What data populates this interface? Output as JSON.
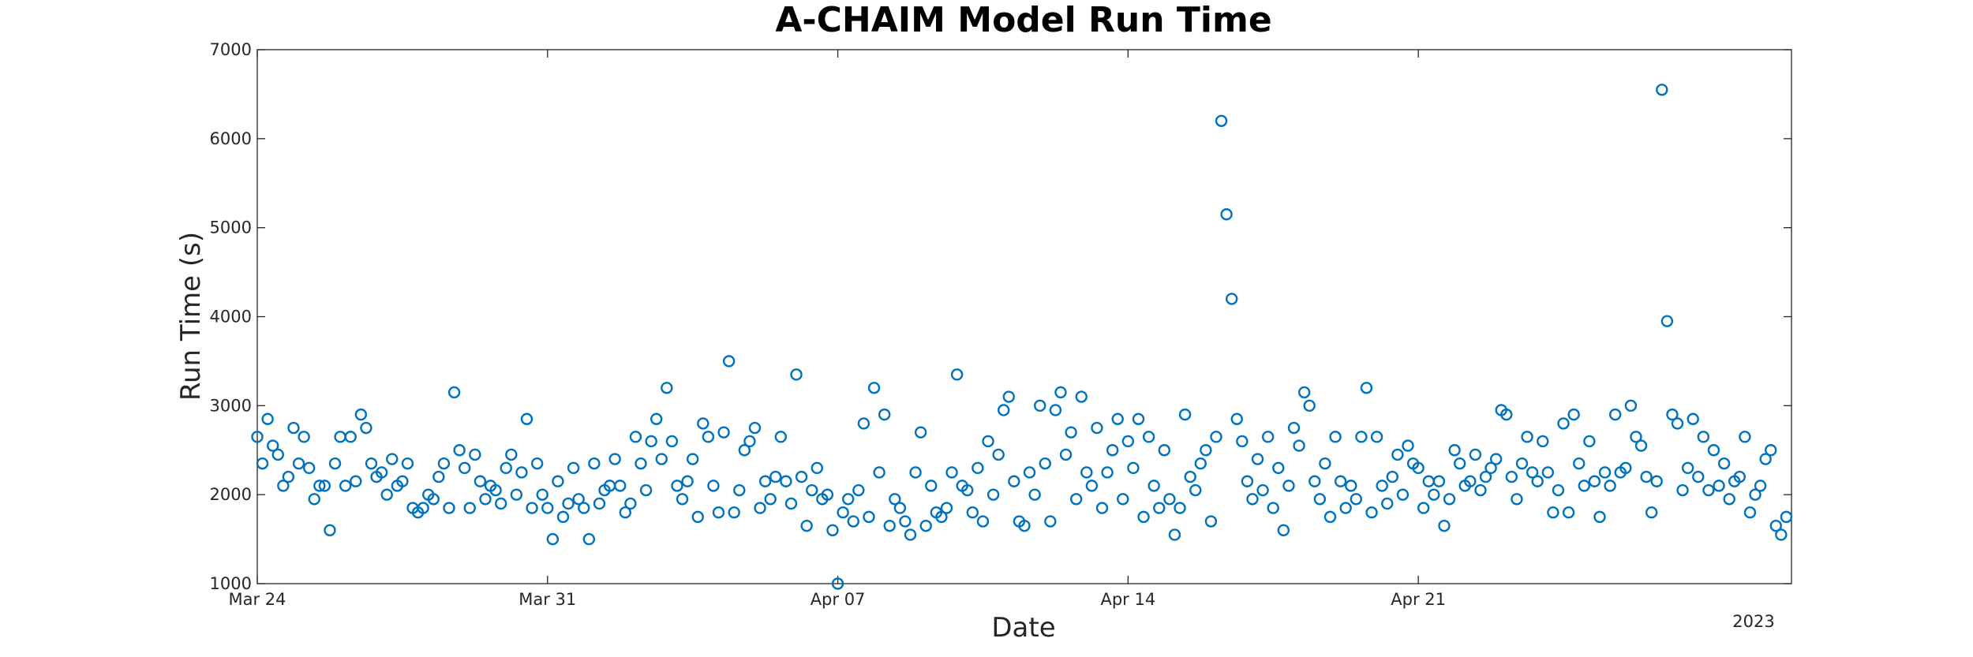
{
  "chart_data": {
    "type": "scatter",
    "title": "A-CHAIM Model Run Time",
    "xlabel": "Date",
    "ylabel": "Run Time (s)",
    "x_axis_type": "date",
    "xlim": [
      "2023-03-24",
      "2023-04-30"
    ],
    "ylim": [
      1000,
      7000
    ],
    "year_label": "2023",
    "x_ticks": [
      {
        "date": "2023-03-24",
        "label": "Mar 24"
      },
      {
        "date": "2023-03-31",
        "label": "Mar 31"
      },
      {
        "date": "2023-04-07",
        "label": "Apr 07"
      },
      {
        "date": "2023-04-14",
        "label": "Apr 14"
      },
      {
        "date": "2023-04-21",
        "label": "Apr 21"
      }
    ],
    "y_ticks": [
      1000,
      2000,
      3000,
      4000,
      5000,
      6000,
      7000
    ],
    "grid": false,
    "marker": "open-circle",
    "color": "#0072BD",
    "points": [
      [
        "2023-03-24 00:00",
        2650
      ],
      [
        "2023-03-24 03:00",
        2350
      ],
      [
        "2023-03-24 06:00",
        2850
      ],
      [
        "2023-03-24 09:00",
        2550
      ],
      [
        "2023-03-24 12:00",
        2450
      ],
      [
        "2023-03-24 15:00",
        2100
      ],
      [
        "2023-03-24 18:00",
        2200
      ],
      [
        "2023-03-24 21:00",
        2750
      ],
      [
        "2023-03-25 00:00",
        2350
      ],
      [
        "2023-03-25 03:00",
        2650
      ],
      [
        "2023-03-25 06:00",
        2300
      ],
      [
        "2023-03-25 09:00",
        1950
      ],
      [
        "2023-03-25 12:00",
        2100
      ],
      [
        "2023-03-25 15:00",
        2100
      ],
      [
        "2023-03-25 18:00",
        1600
      ],
      [
        "2023-03-25 21:00",
        2350
      ],
      [
        "2023-03-26 00:00",
        2650
      ],
      [
        "2023-03-26 03:00",
        2100
      ],
      [
        "2023-03-26 06:00",
        2650
      ],
      [
        "2023-03-26 09:00",
        2150
      ],
      [
        "2023-03-26 12:00",
        2900
      ],
      [
        "2023-03-26 15:00",
        2750
      ],
      [
        "2023-03-26 18:00",
        2350
      ],
      [
        "2023-03-26 21:00",
        2200
      ],
      [
        "2023-03-27 00:00",
        2250
      ],
      [
        "2023-03-27 03:00",
        2000
      ],
      [
        "2023-03-27 06:00",
        2400
      ],
      [
        "2023-03-27 09:00",
        2100
      ],
      [
        "2023-03-27 12:00",
        2150
      ],
      [
        "2023-03-27 15:00",
        2350
      ],
      [
        "2023-03-27 18:00",
        1850
      ],
      [
        "2023-03-27 21:00",
        1800
      ],
      [
        "2023-03-28 00:00",
        1850
      ],
      [
        "2023-03-28 03:00",
        2000
      ],
      [
        "2023-03-28 06:00",
        1950
      ],
      [
        "2023-03-28 09:00",
        2200
      ],
      [
        "2023-03-28 12:00",
        2350
      ],
      [
        "2023-03-28 15:00",
        1850
      ],
      [
        "2023-03-28 18:00",
        3150
      ],
      [
        "2023-03-28 21:00",
        2500
      ],
      [
        "2023-03-29 00:00",
        2300
      ],
      [
        "2023-03-29 03:00",
        1850
      ],
      [
        "2023-03-29 06:00",
        2450
      ],
      [
        "2023-03-29 09:00",
        2150
      ],
      [
        "2023-03-29 12:00",
        1950
      ],
      [
        "2023-03-29 15:00",
        2100
      ],
      [
        "2023-03-29 18:00",
        2050
      ],
      [
        "2023-03-29 21:00",
        1900
      ],
      [
        "2023-03-30 00:00",
        2300
      ],
      [
        "2023-03-30 03:00",
        2450
      ],
      [
        "2023-03-30 06:00",
        2000
      ],
      [
        "2023-03-30 09:00",
        2250
      ],
      [
        "2023-03-30 12:00",
        2850
      ],
      [
        "2023-03-30 15:00",
        1850
      ],
      [
        "2023-03-30 18:00",
        2350
      ],
      [
        "2023-03-30 21:00",
        2000
      ],
      [
        "2023-03-31 00:00",
        1850
      ],
      [
        "2023-03-31 03:00",
        1500
      ],
      [
        "2023-03-31 06:00",
        2150
      ],
      [
        "2023-03-31 09:00",
        1750
      ],
      [
        "2023-03-31 12:00",
        1900
      ],
      [
        "2023-03-31 15:00",
        2300
      ],
      [
        "2023-03-31 18:00",
        1950
      ],
      [
        "2023-03-31 21:00",
        1850
      ],
      [
        "2023-04-01 00:00",
        1500
      ],
      [
        "2023-04-01 03:00",
        2350
      ],
      [
        "2023-04-01 06:00",
        1900
      ],
      [
        "2023-04-01 09:00",
        2050
      ],
      [
        "2023-04-01 12:00",
        2100
      ],
      [
        "2023-04-01 15:00",
        2400
      ],
      [
        "2023-04-01 18:00",
        2100
      ],
      [
        "2023-04-01 21:00",
        1800
      ],
      [
        "2023-04-02 00:00",
        1900
      ],
      [
        "2023-04-02 03:00",
        2650
      ],
      [
        "2023-04-02 06:00",
        2350
      ],
      [
        "2023-04-02 09:00",
        2050
      ],
      [
        "2023-04-02 12:00",
        2600
      ],
      [
        "2023-04-02 15:00",
        2850
      ],
      [
        "2023-04-02 18:00",
        2400
      ],
      [
        "2023-04-02 21:00",
        3200
      ],
      [
        "2023-04-03 00:00",
        2600
      ],
      [
        "2023-04-03 03:00",
        2100
      ],
      [
        "2023-04-03 06:00",
        1950
      ],
      [
        "2023-04-03 09:00",
        2150
      ],
      [
        "2023-04-03 12:00",
        2400
      ],
      [
        "2023-04-03 15:00",
        1750
      ],
      [
        "2023-04-03 18:00",
        2800
      ],
      [
        "2023-04-03 21:00",
        2650
      ],
      [
        "2023-04-04 00:00",
        2100
      ],
      [
        "2023-04-04 03:00",
        1800
      ],
      [
        "2023-04-04 06:00",
        2700
      ],
      [
        "2023-04-04 09:00",
        3500
      ],
      [
        "2023-04-04 12:00",
        1800
      ],
      [
        "2023-04-04 15:00",
        2050
      ],
      [
        "2023-04-04 18:00",
        2500
      ],
      [
        "2023-04-04 21:00",
        2600
      ],
      [
        "2023-04-05 00:00",
        2750
      ],
      [
        "2023-04-05 03:00",
        1850
      ],
      [
        "2023-04-05 06:00",
        2150
      ],
      [
        "2023-04-05 09:00",
        1950
      ],
      [
        "2023-04-05 12:00",
        2200
      ],
      [
        "2023-04-05 15:00",
        2650
      ],
      [
        "2023-04-05 18:00",
        2150
      ],
      [
        "2023-04-05 21:00",
        1900
      ],
      [
        "2023-04-06 00:00",
        3350
      ],
      [
        "2023-04-06 03:00",
        2200
      ],
      [
        "2023-04-06 06:00",
        1650
      ],
      [
        "2023-04-06 09:00",
        2050
      ],
      [
        "2023-04-06 12:00",
        2300
      ],
      [
        "2023-04-06 15:00",
        1950
      ],
      [
        "2023-04-06 18:00",
        2000
      ],
      [
        "2023-04-06 21:00",
        1600
      ],
      [
        "2023-04-07 00:00",
        1000
      ],
      [
        "2023-04-07 03:00",
        1800
      ],
      [
        "2023-04-07 06:00",
        1950
      ],
      [
        "2023-04-07 09:00",
        1700
      ],
      [
        "2023-04-07 12:00",
        2050
      ],
      [
        "2023-04-07 15:00",
        2800
      ],
      [
        "2023-04-07 18:00",
        1750
      ],
      [
        "2023-04-07 21:00",
        3200
      ],
      [
        "2023-04-08 00:00",
        2250
      ],
      [
        "2023-04-08 03:00",
        2900
      ],
      [
        "2023-04-08 06:00",
        1650
      ],
      [
        "2023-04-08 09:00",
        1950
      ],
      [
        "2023-04-08 12:00",
        1850
      ],
      [
        "2023-04-08 15:00",
        1700
      ],
      [
        "2023-04-08 18:00",
        1550
      ],
      [
        "2023-04-08 21:00",
        2250
      ],
      [
        "2023-04-09 00:00",
        2700
      ],
      [
        "2023-04-09 03:00",
        1650
      ],
      [
        "2023-04-09 06:00",
        2100
      ],
      [
        "2023-04-09 09:00",
        1800
      ],
      [
        "2023-04-09 12:00",
        1750
      ],
      [
        "2023-04-09 15:00",
        1850
      ],
      [
        "2023-04-09 18:00",
        2250
      ],
      [
        "2023-04-09 21:00",
        3350
      ],
      [
        "2023-04-10 00:00",
        2100
      ],
      [
        "2023-04-10 03:00",
        2050
      ],
      [
        "2023-04-10 06:00",
        1800
      ],
      [
        "2023-04-10 09:00",
        2300
      ],
      [
        "2023-04-10 12:00",
        1700
      ],
      [
        "2023-04-10 15:00",
        2600
      ],
      [
        "2023-04-10 18:00",
        2000
      ],
      [
        "2023-04-10 21:00",
        2450
      ],
      [
        "2023-04-11 00:00",
        2950
      ],
      [
        "2023-04-11 03:00",
        3100
      ],
      [
        "2023-04-11 06:00",
        2150
      ],
      [
        "2023-04-11 09:00",
        1700
      ],
      [
        "2023-04-11 12:00",
        1650
      ],
      [
        "2023-04-11 15:00",
        2250
      ],
      [
        "2023-04-11 18:00",
        2000
      ],
      [
        "2023-04-11 21:00",
        3000
      ],
      [
        "2023-04-12 00:00",
        2350
      ],
      [
        "2023-04-12 03:00",
        1700
      ],
      [
        "2023-04-12 06:00",
        2950
      ],
      [
        "2023-04-12 09:00",
        3150
      ],
      [
        "2023-04-12 12:00",
        2450
      ],
      [
        "2023-04-12 15:00",
        2700
      ],
      [
        "2023-04-12 18:00",
        1950
      ],
      [
        "2023-04-12 21:00",
        3100
      ],
      [
        "2023-04-13 00:00",
        2250
      ],
      [
        "2023-04-13 03:00",
        2100
      ],
      [
        "2023-04-13 06:00",
        2750
      ],
      [
        "2023-04-13 09:00",
        1850
      ],
      [
        "2023-04-13 12:00",
        2250
      ],
      [
        "2023-04-13 15:00",
        2500
      ],
      [
        "2023-04-13 18:00",
        2850
      ],
      [
        "2023-04-13 21:00",
        1950
      ],
      [
        "2023-04-14 00:00",
        2600
      ],
      [
        "2023-04-14 03:00",
        2300
      ],
      [
        "2023-04-14 06:00",
        2850
      ],
      [
        "2023-04-14 09:00",
        1750
      ],
      [
        "2023-04-14 12:00",
        2650
      ],
      [
        "2023-04-14 15:00",
        2100
      ],
      [
        "2023-04-14 18:00",
        1850
      ],
      [
        "2023-04-14 21:00",
        2500
      ],
      [
        "2023-04-15 00:00",
        1950
      ],
      [
        "2023-04-15 03:00",
        1550
      ],
      [
        "2023-04-15 06:00",
        1850
      ],
      [
        "2023-04-15 09:00",
        2900
      ],
      [
        "2023-04-15 12:00",
        2200
      ],
      [
        "2023-04-15 15:00",
        2050
      ],
      [
        "2023-04-15 18:00",
        2350
      ],
      [
        "2023-04-15 21:00",
        2500
      ],
      [
        "2023-04-16 00:00",
        1700
      ],
      [
        "2023-04-16 03:00",
        2650
      ],
      [
        "2023-04-16 06:00",
        6200
      ],
      [
        "2023-04-16 09:00",
        5150
      ],
      [
        "2023-04-16 12:00",
        4200
      ],
      [
        "2023-04-16 15:00",
        2850
      ],
      [
        "2023-04-16 18:00",
        2600
      ],
      [
        "2023-04-16 21:00",
        2150
      ],
      [
        "2023-04-17 00:00",
        1950
      ],
      [
        "2023-04-17 03:00",
        2400
      ],
      [
        "2023-04-17 06:00",
        2050
      ],
      [
        "2023-04-17 09:00",
        2650
      ],
      [
        "2023-04-17 12:00",
        1850
      ],
      [
        "2023-04-17 15:00",
        2300
      ],
      [
        "2023-04-17 18:00",
        1600
      ],
      [
        "2023-04-17 21:00",
        2100
      ],
      [
        "2023-04-18 00:00",
        2750
      ],
      [
        "2023-04-18 03:00",
        2550
      ],
      [
        "2023-04-18 06:00",
        3150
      ],
      [
        "2023-04-18 09:00",
        3000
      ],
      [
        "2023-04-18 12:00",
        2150
      ],
      [
        "2023-04-18 15:00",
        1950
      ],
      [
        "2023-04-18 18:00",
        2350
      ],
      [
        "2023-04-18 21:00",
        1750
      ],
      [
        "2023-04-19 00:00",
        2650
      ],
      [
        "2023-04-19 03:00",
        2150
      ],
      [
        "2023-04-19 06:00",
        1850
      ],
      [
        "2023-04-19 09:00",
        2100
      ],
      [
        "2023-04-19 12:00",
        1950
      ],
      [
        "2023-04-19 15:00",
        2650
      ],
      [
        "2023-04-19 18:00",
        3200
      ],
      [
        "2023-04-19 21:00",
        1800
      ],
      [
        "2023-04-20 00:00",
        2650
      ],
      [
        "2023-04-20 03:00",
        2100
      ],
      [
        "2023-04-20 06:00",
        1900
      ],
      [
        "2023-04-20 09:00",
        2200
      ],
      [
        "2023-04-20 12:00",
        2450
      ],
      [
        "2023-04-20 15:00",
        2000
      ],
      [
        "2023-04-20 18:00",
        2550
      ],
      [
        "2023-04-20 21:00",
        2350
      ],
      [
        "2023-04-21 00:00",
        2300
      ],
      [
        "2023-04-21 03:00",
        1850
      ],
      [
        "2023-04-21 06:00",
        2150
      ],
      [
        "2023-04-21 09:00",
        2000
      ],
      [
        "2023-04-21 12:00",
        2150
      ],
      [
        "2023-04-21 15:00",
        1650
      ],
      [
        "2023-04-21 18:00",
        1950
      ],
      [
        "2023-04-21 21:00",
        2500
      ],
      [
        "2023-04-22 00:00",
        2350
      ],
      [
        "2023-04-22 03:00",
        2100
      ],
      [
        "2023-04-22 06:00",
        2150
      ],
      [
        "2023-04-22 09:00",
        2450
      ],
      [
        "2023-04-22 12:00",
        2050
      ],
      [
        "2023-04-22 15:00",
        2200
      ],
      [
        "2023-04-22 18:00",
        2300
      ],
      [
        "2023-04-22 21:00",
        2400
      ],
      [
        "2023-04-23 00:00",
        2950
      ],
      [
        "2023-04-23 03:00",
        2900
      ],
      [
        "2023-04-23 06:00",
        2200
      ],
      [
        "2023-04-23 09:00",
        1950
      ],
      [
        "2023-04-23 12:00",
        2350
      ],
      [
        "2023-04-23 15:00",
        2650
      ],
      [
        "2023-04-23 18:00",
        2250
      ],
      [
        "2023-04-23 21:00",
        2150
      ],
      [
        "2023-04-24 00:00",
        2600
      ],
      [
        "2023-04-24 03:00",
        2250
      ],
      [
        "2023-04-24 06:00",
        1800
      ],
      [
        "2023-04-24 09:00",
        2050
      ],
      [
        "2023-04-24 12:00",
        2800
      ],
      [
        "2023-04-24 15:00",
        1800
      ],
      [
        "2023-04-24 18:00",
        2900
      ],
      [
        "2023-04-24 21:00",
        2350
      ],
      [
        "2023-04-25 00:00",
        2100
      ],
      [
        "2023-04-25 03:00",
        2600
      ],
      [
        "2023-04-25 06:00",
        2150
      ],
      [
        "2023-04-25 09:00",
        1750
      ],
      [
        "2023-04-25 12:00",
        2250
      ],
      [
        "2023-04-25 15:00",
        2100
      ],
      [
        "2023-04-25 18:00",
        2900
      ],
      [
        "2023-04-25 21:00",
        2250
      ],
      [
        "2023-04-26 00:00",
        2300
      ],
      [
        "2023-04-26 03:00",
        3000
      ],
      [
        "2023-04-26 06:00",
        2650
      ],
      [
        "2023-04-26 09:00",
        2550
      ],
      [
        "2023-04-26 12:00",
        2200
      ],
      [
        "2023-04-26 15:00",
        1800
      ],
      [
        "2023-04-26 18:00",
        2150
      ],
      [
        "2023-04-26 21:00",
        6550
      ],
      [
        "2023-04-27 00:00",
        3950
      ],
      [
        "2023-04-27 03:00",
        2900
      ],
      [
        "2023-04-27 06:00",
        2800
      ],
      [
        "2023-04-27 09:00",
        2050
      ],
      [
        "2023-04-27 12:00",
        2300
      ],
      [
        "2023-04-27 15:00",
        2850
      ],
      [
        "2023-04-27 18:00",
        2200
      ],
      [
        "2023-04-27 21:00",
        2650
      ],
      [
        "2023-04-28 00:00",
        2050
      ],
      [
        "2023-04-28 03:00",
        2500
      ],
      [
        "2023-04-28 06:00",
        2100
      ],
      [
        "2023-04-28 09:00",
        2350
      ],
      [
        "2023-04-28 12:00",
        1950
      ],
      [
        "2023-04-28 15:00",
        2150
      ],
      [
        "2023-04-28 18:00",
        2200
      ],
      [
        "2023-04-28 21:00",
        2650
      ],
      [
        "2023-04-29 00:00",
        1800
      ],
      [
        "2023-04-29 03:00",
        2000
      ],
      [
        "2023-04-29 06:00",
        2100
      ],
      [
        "2023-04-29 09:00",
        2400
      ],
      [
        "2023-04-29 12:00",
        2500
      ],
      [
        "2023-04-29 15:00",
        1650
      ],
      [
        "2023-04-29 18:00",
        1550
      ],
      [
        "2023-04-29 21:00",
        1750
      ]
    ]
  }
}
